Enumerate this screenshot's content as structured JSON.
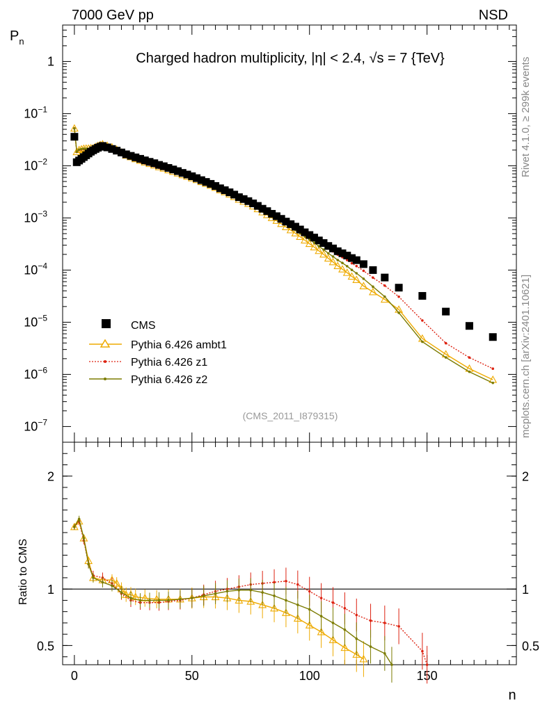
{
  "header": {
    "left": "7000 GeV pp",
    "right": "NSD"
  },
  "side": {
    "rivet": "Rivet 4.1.0, ≥ 299k events",
    "mcplots": "mcplots.cern.ch [arXiv:2401.10621]"
  },
  "chart_data": {
    "type": "scatter",
    "title": "Charged hadron multiplicity, |η| < 2.4, √s = 7 {TeV}",
    "analysis_tag": "(CMS_2011_I879315)",
    "xlabel": "n",
    "ylabel": "P",
    "ylabel_sub": "n",
    "ratio_ylabel": "Ratio to CMS",
    "xlim": [
      -5,
      188
    ],
    "ylim": [
      5e-08,
      5
    ],
    "yscale": "log",
    "ratio_ylim": [
      0.33,
      2.3
    ],
    "xticks": [
      0,
      50,
      100,
      150
    ],
    "yticks_main": [
      {
        "v": 1,
        "label": "1"
      },
      {
        "v": 0.1,
        "base": "10",
        "exp": "−1"
      },
      {
        "v": 0.01,
        "base": "10",
        "exp": "−2"
      },
      {
        "v": 0.001,
        "base": "10",
        "exp": "−3"
      },
      {
        "v": 0.0001,
        "base": "10",
        "exp": "−4"
      },
      {
        "v": 1e-05,
        "base": "10",
        "exp": "−5"
      },
      {
        "v": 1e-06,
        "base": "10",
        "exp": "−6"
      },
      {
        "v": 1e-07,
        "base": "10",
        "exp": "−7"
      }
    ],
    "yticks_ratio": [
      {
        "v": 2,
        "label": "2"
      },
      {
        "v": 1,
        "label": "1"
      },
      {
        "v": 0.5,
        "label": "0.5"
      }
    ],
    "legend": [
      {
        "label": "CMS",
        "color": "#000000",
        "style": "square"
      },
      {
        "label": "Pythia 6.426 ambt1",
        "color": "#eeaa00",
        "style": "triangle"
      },
      {
        "label": "Pythia 6.426 z1",
        "color": "#dd2211",
        "style": "dot-dotted"
      },
      {
        "label": "Pythia 6.426 z2",
        "color": "#7b7b00",
        "style": "dot-solid"
      }
    ],
    "cms": {
      "n": [
        0,
        1,
        2,
        3,
        4,
        5,
        6,
        7,
        8,
        9,
        10,
        11,
        12,
        14,
        16,
        18,
        20,
        22,
        24,
        26,
        28,
        30,
        32,
        34,
        36,
        38,
        40,
        42,
        44,
        46,
        48,
        50,
        52,
        54,
        56,
        58,
        60,
        62,
        64,
        66,
        68,
        70,
        72,
        74,
        76,
        78,
        80,
        82,
        84,
        86,
        88,
        90,
        92,
        94,
        96,
        98,
        100,
        102,
        104,
        106,
        108,
        110,
        112,
        114,
        116,
        118,
        120,
        123,
        127,
        132,
        138,
        148,
        158,
        168,
        178
      ],
      "p": [
        0.036,
        0.0117,
        0.0126,
        0.0136,
        0.0147,
        0.0159,
        0.0172,
        0.0186,
        0.0198,
        0.021,
        0.0222,
        0.0232,
        0.024,
        0.0225,
        0.021,
        0.0195,
        0.018,
        0.0166,
        0.0155,
        0.0145,
        0.0136,
        0.0127,
        0.0119,
        0.0112,
        0.0104,
        0.0098,
        0.0091,
        0.0085,
        0.0079,
        0.0073,
        0.0068,
        0.0063,
        0.0058,
        0.0053,
        0.0049,
        0.0045,
        0.0041,
        0.0037,
        0.0034,
        0.0031,
        0.0028,
        0.0025,
        0.0023,
        0.0021,
        0.0019,
        0.0017,
        0.0015,
        0.00135,
        0.0012,
        0.00108,
        0.00096,
        0.00085,
        0.00076,
        0.00068,
        0.0006,
        0.00053,
        0.00047,
        0.00042,
        0.00037,
        0.00033,
        0.00029,
        0.00026,
        0.00023,
        0.00021,
        0.00019,
        0.00017,
        0.000155,
        0.00013,
        0.0001,
        7.2e-05,
        4.6e-05,
        3.2e-05,
        1.6e-05,
        8.5e-06,
        5.2e-06
      ]
    },
    "ratios": [
      {
        "name": "Pythia 6.426 ambt1",
        "color": "#eeaa00",
        "points": [
          [
            0,
            1.55
          ],
          [
            2,
            1.6
          ],
          [
            4,
            1.45
          ],
          [
            6,
            1.25
          ],
          [
            8,
            1.1
          ],
          [
            12,
            1.08
          ],
          [
            16,
            1.08
          ],
          [
            18,
            1.05
          ],
          [
            20,
            1.0
          ],
          [
            22,
            0.95
          ],
          [
            24,
            0.95
          ],
          [
            26,
            0.93
          ],
          [
            30,
            0.92
          ],
          [
            35,
            0.91
          ],
          [
            40,
            0.91
          ],
          [
            45,
            0.91
          ],
          [
            50,
            0.92
          ],
          [
            55,
            0.93
          ],
          [
            60,
            0.93
          ],
          [
            65,
            0.92
          ],
          [
            70,
            0.9
          ],
          [
            75,
            0.89
          ],
          [
            80,
            0.86
          ],
          [
            85,
            0.83
          ],
          [
            90,
            0.79
          ],
          [
            95,
            0.74
          ],
          [
            100,
            0.68
          ],
          [
            105,
            0.62
          ],
          [
            110,
            0.55
          ],
          [
            115,
            0.48
          ],
          [
            120,
            0.42
          ],
          [
            123,
            0.38
          ]
        ]
      },
      {
        "name": "Pythia 6.426 z1",
        "color": "#dd2211",
        "points": [
          [
            0,
            1.55
          ],
          [
            2,
            1.6
          ],
          [
            4,
            1.43
          ],
          [
            6,
            1.22
          ],
          [
            8,
            1.12
          ],
          [
            12,
            1.1
          ],
          [
            16,
            1.05
          ],
          [
            20,
            0.96
          ],
          [
            24,
            0.9
          ],
          [
            28,
            0.88
          ],
          [
            32,
            0.88
          ],
          [
            36,
            0.88
          ],
          [
            40,
            0.89
          ],
          [
            45,
            0.9
          ],
          [
            50,
            0.92
          ],
          [
            55,
            0.95
          ],
          [
            60,
            0.98
          ],
          [
            65,
            1.0
          ],
          [
            70,
            1.02
          ],
          [
            75,
            1.04
          ],
          [
            80,
            1.05
          ],
          [
            85,
            1.06
          ],
          [
            90,
            1.07
          ],
          [
            95,
            1.04
          ],
          [
            100,
            0.98
          ],
          [
            105,
            0.92
          ],
          [
            110,
            0.88
          ],
          [
            115,
            0.83
          ],
          [
            120,
            0.77
          ],
          [
            126,
            0.72
          ],
          [
            132,
            0.7
          ],
          [
            138,
            0.67
          ],
          [
            148,
            0.45
          ],
          [
            150,
            0.33
          ]
        ]
      },
      {
        "name": "Pythia 6.426 z2",
        "color": "#7b7b00",
        "points": [
          [
            0,
            1.55
          ],
          [
            2,
            1.62
          ],
          [
            4,
            1.45
          ],
          [
            6,
            1.22
          ],
          [
            8,
            1.1
          ],
          [
            12,
            1.06
          ],
          [
            16,
            1.03
          ],
          [
            20,
            0.97
          ],
          [
            24,
            0.92
          ],
          [
            28,
            0.9
          ],
          [
            32,
            0.9
          ],
          [
            36,
            0.9
          ],
          [
            40,
            0.9
          ],
          [
            45,
            0.91
          ],
          [
            50,
            0.92
          ],
          [
            55,
            0.94
          ],
          [
            60,
            0.96
          ],
          [
            65,
            0.98
          ],
          [
            70,
            0.99
          ],
          [
            75,
            0.99
          ],
          [
            80,
            0.97
          ],
          [
            85,
            0.94
          ],
          [
            90,
            0.9
          ],
          [
            95,
            0.86
          ],
          [
            100,
            0.82
          ],
          [
            105,
            0.76
          ],
          [
            110,
            0.7
          ],
          [
            115,
            0.64
          ],
          [
            120,
            0.56
          ],
          [
            126,
            0.49
          ],
          [
            132,
            0.43
          ],
          [
            135,
            0.33
          ]
        ]
      }
    ]
  }
}
